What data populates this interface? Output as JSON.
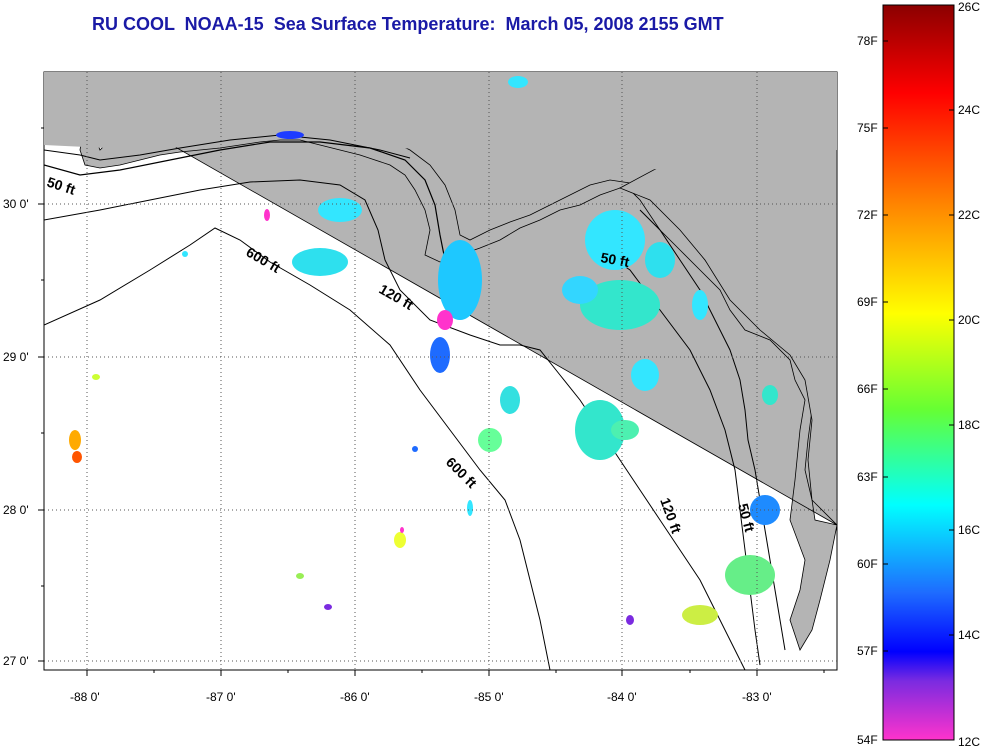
{
  "title": "RU COOL  NOAA-15  Sea Surface Temperature:  March 05, 2008 2155 GMT",
  "lon_labels": [
    "-88 0'",
    "-87 0'",
    "-86 0'",
    "-85 0'",
    "-84 0'",
    "-83 0'"
  ],
  "lat_labels": [
    "30 0'",
    "29 0'",
    "28 0'",
    "27 0'"
  ],
  "contour_labels": [
    "50 ft",
    "600 ft",
    "120 ft",
    "50 ft",
    "600 ft",
    "120 ft",
    "50 ft"
  ],
  "colorbar": {
    "celsius_labels": [
      "26C",
      "24C",
      "22C",
      "20C",
      "18C",
      "16C",
      "14C",
      "12C"
    ],
    "fahrenheit_labels": [
      "78F",
      "75F",
      "72F",
      "69F",
      "66F",
      "63F",
      "60F",
      "57F",
      "54F"
    ]
  },
  "colors": {
    "land": "#b4b4b4",
    "title": "#1a1aa6",
    "ocean": "#ffffff"
  }
}
